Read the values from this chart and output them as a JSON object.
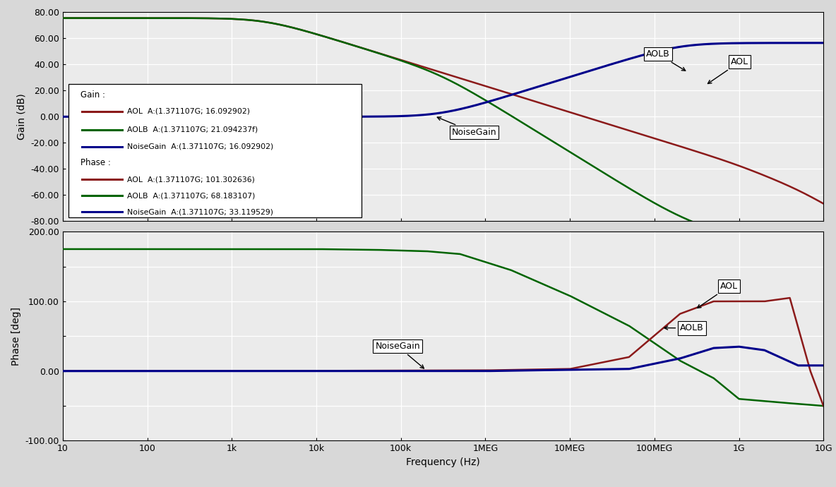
{
  "freq_min": 10,
  "freq_max": 10000000000.0,
  "gain_ylim": [
    -80,
    80
  ],
  "phase_ylim": [
    -100,
    200
  ],
  "gain_yticks": [
    -80,
    -60,
    -40,
    -20,
    0,
    20,
    40,
    60,
    80
  ],
  "phase_yticks": [
    -100,
    -50,
    0,
    50,
    100,
    150,
    200
  ],
  "phase_ytick_labels": [
    "-100.00",
    "",
    "0.00",
    "",
    "100.00",
    "",
    "200.00"
  ],
  "gain_ytick_labels": [
    "-80.00",
    "-60.00",
    "-40.00",
    "-20.00",
    "0.00",
    "20.00",
    "40.00",
    "60.00",
    "80.00"
  ],
  "gain_ylabel": "Gain (dB)",
  "phase_ylabel": "Phase [deg]",
  "xlabel": "Frequency (Hz)",
  "bg_color": "#d8d8d8",
  "plot_bg_color": "#ebebeb",
  "grid_major_color": "#ffffff",
  "grid_minor_color": "#ffffff",
  "aol_color": "#8B1A1A",
  "aolb_color": "#006400",
  "noise_color": "#00008B",
  "xtick_locs": [
    10,
    100,
    1000,
    10000,
    100000,
    1000000,
    10000000,
    100000000,
    1000000000,
    10000000000
  ],
  "xtick_labels": [
    "10",
    "100",
    "1k",
    "10k",
    "100k",
    "1MEG",
    "10MEG",
    "100MEG",
    "1G",
    "10G"
  ],
  "legend_aol_gain": "AOL  A:(1.371107G; 16.092902)",
  "legend_aolb_gain": "AOLB  A:(1.371107G; 21.094237f)",
  "legend_noise_gain": "NoiseGain  A:(1.371107G; 16.092902)",
  "legend_aol_phase": "AOL  A:(1.371107G; 101.302636)",
  "legend_aolb_phase": "AOLB  A:(1.371107G; 68.183107)",
  "legend_noise_phase": "NoiseGain  A:(1.371107G; 33.119529)"
}
